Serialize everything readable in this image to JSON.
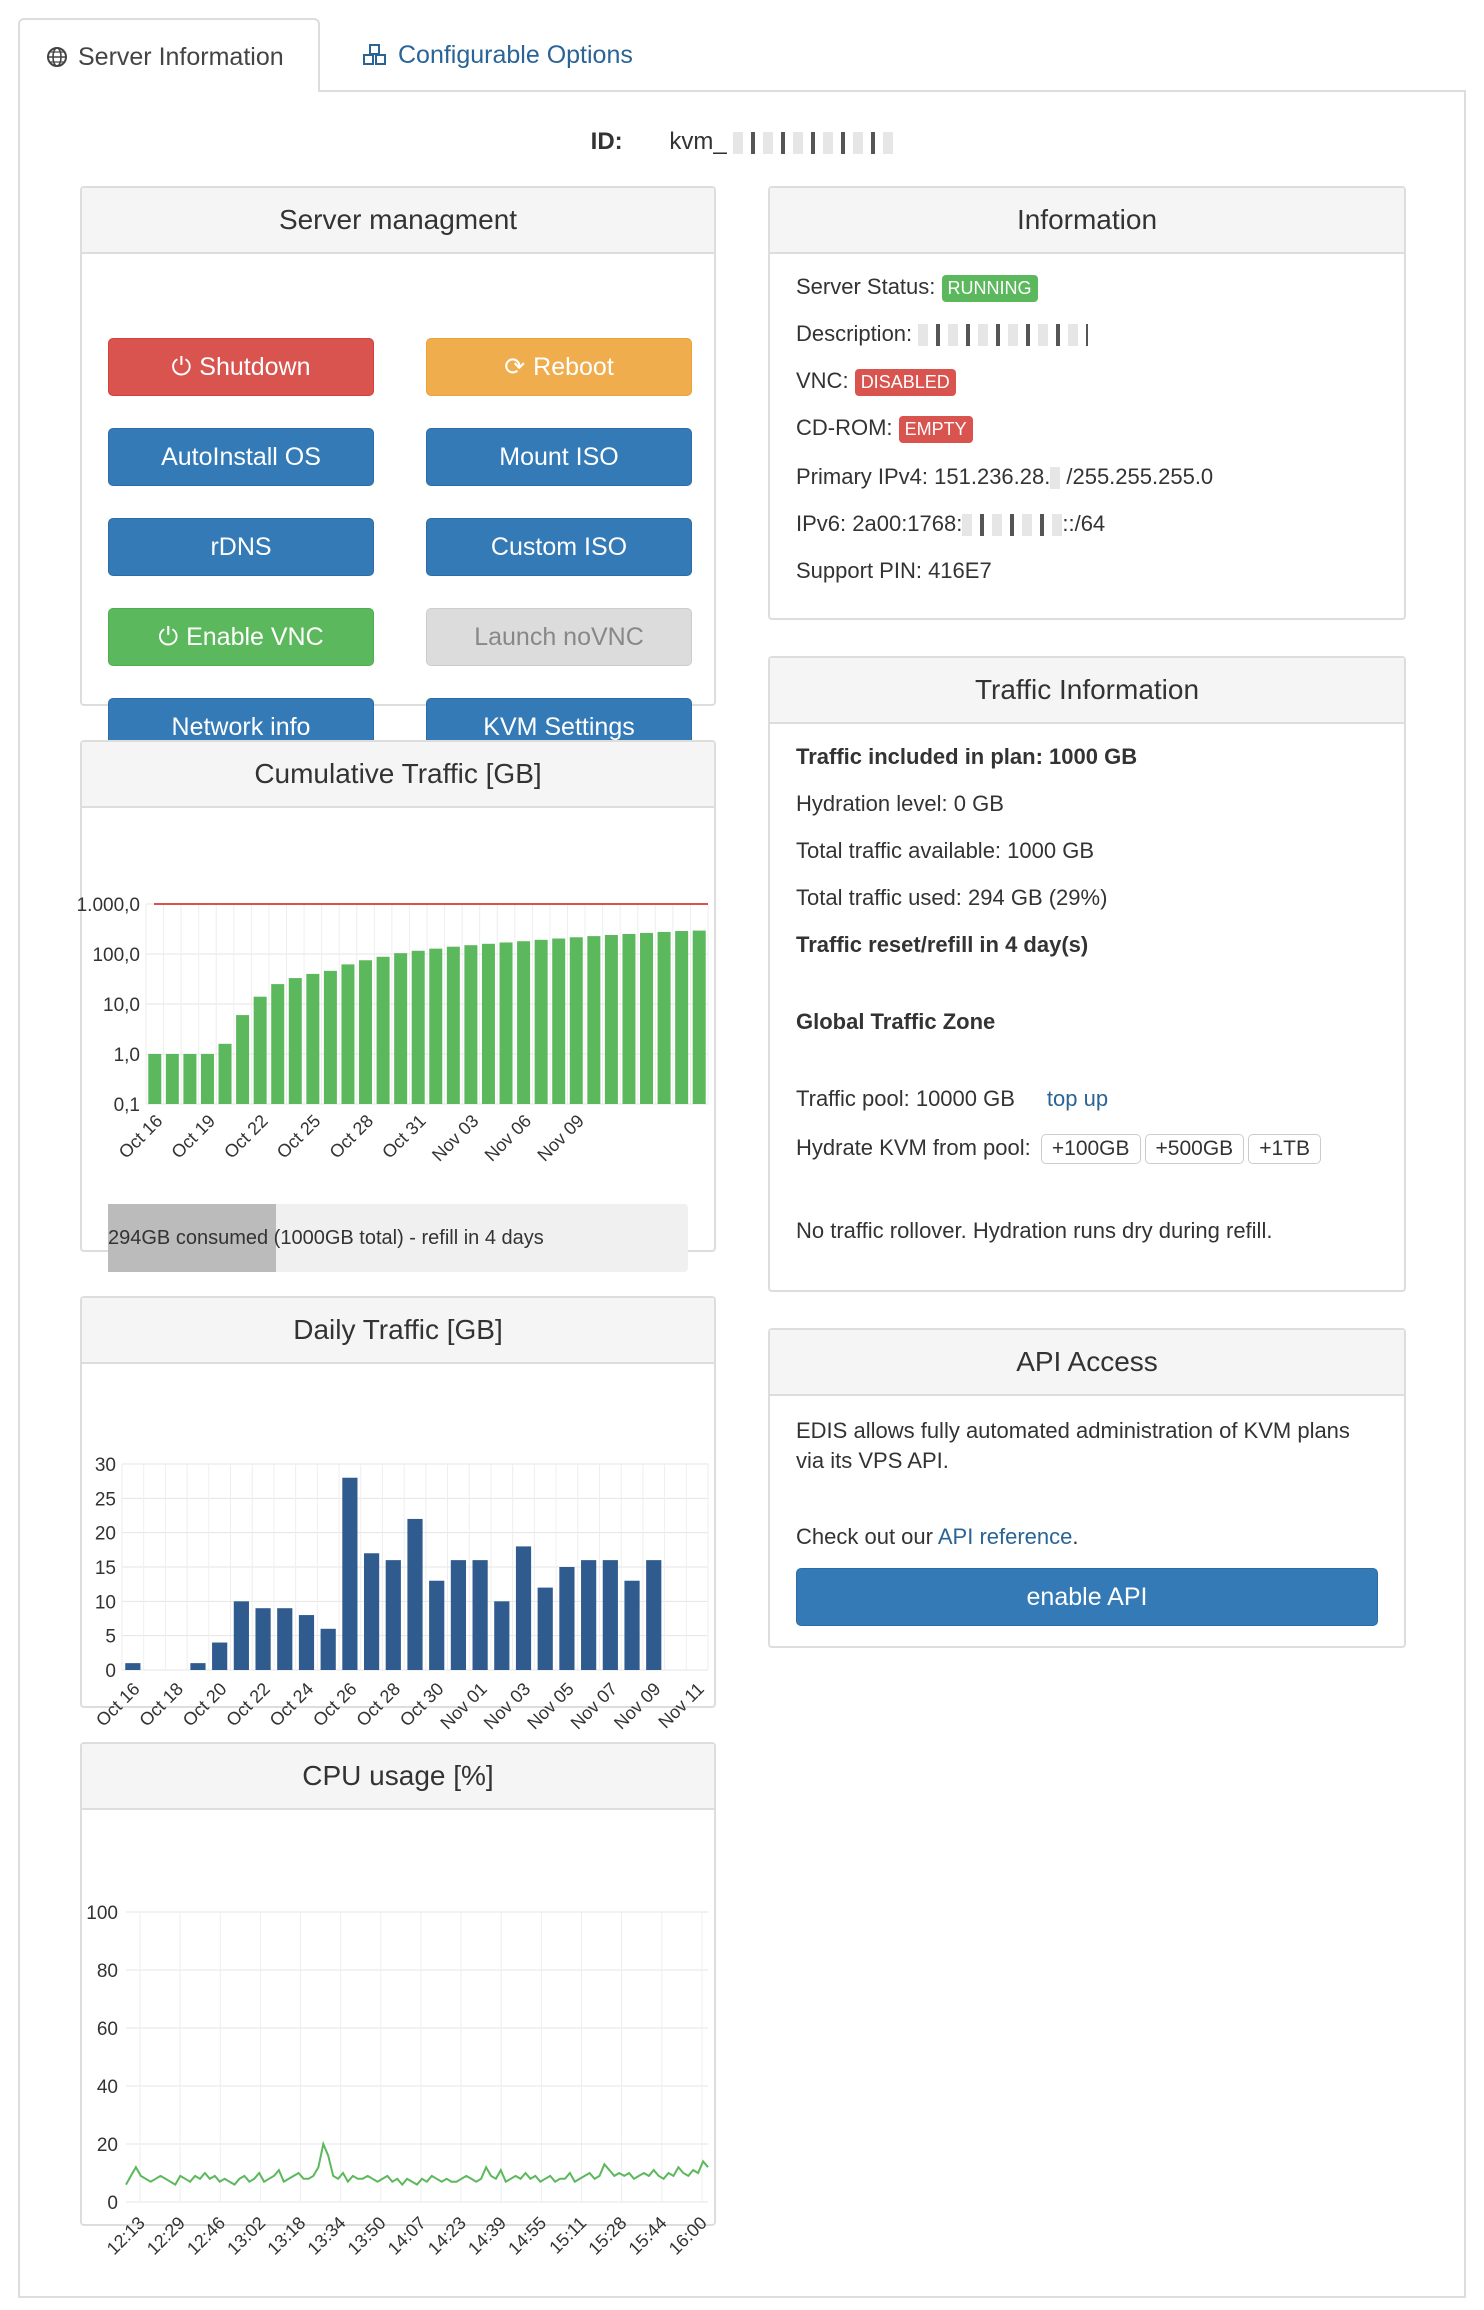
{
  "tabs": [
    {
      "label": "Server Information",
      "icon": "globe-icon",
      "active": true
    },
    {
      "label": "Configurable Options",
      "icon": "cubes-icon",
      "active": false
    }
  ],
  "server_id": {
    "label": "ID:",
    "value": "kvm_"
  },
  "management": {
    "title": "Server managment",
    "buttons": {
      "shutdown": "Shutdown",
      "reboot": "Reboot",
      "autoinstall": "AutoInstall OS",
      "mount_iso": "Mount ISO",
      "rdns": "rDNS",
      "custom_iso": "Custom ISO",
      "enable_vnc": "Enable VNC",
      "launch_novnc": "Launch noVNC",
      "network_info": "Network info",
      "kvm_settings": "KVM Settings"
    }
  },
  "information": {
    "title": "Information",
    "status_label": "Server Status:",
    "status_value": "RUNNING",
    "description_label": "Description:",
    "vnc_label": "VNC:",
    "vnc_value": "DISABLED",
    "cdrom_label": "CD-ROM:",
    "cdrom_value": "EMPTY",
    "ipv4_prefix": "Primary IPv4: 151.236.28.",
    "ipv4_suffix": "/255.255.255.0",
    "ipv6_prefix": "IPv6: 2a00:1768:",
    "ipv6_suffix": "::/64",
    "pin": "Support PIN: 416E7"
  },
  "traffic_info": {
    "title": "Traffic Information",
    "included": "Traffic included in plan: 1000 GB",
    "hydration": "Hydration level: 0 GB",
    "total_available": "Total traffic available: 1000 GB",
    "total_used": "Total traffic used: 294 GB (29%)",
    "reset": "Traffic reset/refill in 4 day(s)",
    "zone": "Global Traffic Zone",
    "pool": "Traffic pool: 10000 GB",
    "top_up": "top up",
    "hydrate_label": "Hydrate KVM from pool:",
    "hydrate_options": [
      "+100GB",
      "+500GB",
      "+1TB"
    ],
    "rollover": "No traffic rollover. Hydration runs dry during refill."
  },
  "api": {
    "title": "API Access",
    "description": "EDIS allows fully automated administration of KVM plans via its VPS API.",
    "check_prefix": "Check out our ",
    "reference_link": "API reference",
    "check_suffix": ".",
    "enable_button": "enable API"
  },
  "cumulative": {
    "title": "Cumulative Traffic [GB]",
    "consumed": "294GB consumed",
    "rest": " (1000GB total) - refill in 4 days",
    "fraction": 0.29
  },
  "daily": {
    "title": "Daily Traffic [GB]"
  },
  "cpu": {
    "title": "CPU usage [%]"
  },
  "chart_data": [
    {
      "type": "bar",
      "name": "cumulative",
      "yscale": "log",
      "ylim": [
        0.1,
        1000
      ],
      "ytick_labels": [
        "1.000,0",
        "100,0",
        "10,0",
        "1,0",
        "0,1"
      ],
      "ytick_values": [
        1000,
        100,
        10,
        1,
        0.1
      ],
      "limit_line": 1000,
      "xtick_labels": [
        "Oct 16",
        "Oct 19",
        "Oct 22",
        "Oct 25",
        "Oct 28",
        "Oct 31",
        "Nov 03",
        "Nov 06",
        "Nov 09"
      ],
      "values": [
        1,
        1,
        1,
        1,
        1.6,
        6,
        14,
        25,
        33,
        40,
        46,
        62,
        75,
        88,
        104,
        116,
        128,
        140,
        150,
        160,
        170,
        180,
        192,
        204,
        216,
        228,
        240,
        252,
        264,
        276,
        288,
        294
      ]
    },
    {
      "type": "bar",
      "name": "daily",
      "ylim": [
        0,
        30
      ],
      "ytick_values": [
        0,
        5,
        10,
        15,
        20,
        25,
        30
      ],
      "categories": [
        "Oct 16",
        "Oct 17",
        "Oct 18",
        "Oct 19",
        "Oct 20",
        "Oct 21",
        "Oct 22",
        "Oct 23",
        "Oct 24",
        "Oct 25",
        "Oct 26",
        "Oct 27",
        "Oct 28",
        "Oct 29",
        "Oct 30",
        "Oct 31",
        "Nov 01",
        "Nov 02",
        "Nov 03",
        "Nov 04",
        "Nov 05",
        "Nov 06",
        "Nov 07",
        "Nov 08",
        "Nov 09",
        "Nov 10",
        "Nov 11"
      ],
      "xtick_labels": [
        "Oct 16",
        "Oct 18",
        "Oct 20",
        "Oct 22",
        "Oct 24",
        "Oct 26",
        "Oct 28",
        "Oct 30",
        "Nov 01",
        "Nov 03",
        "Nov 05",
        "Nov 07",
        "Nov 09",
        "Nov 11"
      ],
      "values": [
        1,
        0,
        0,
        1,
        4,
        10,
        9,
        9,
        8,
        6,
        28,
        17,
        16,
        22,
        13,
        16,
        16,
        10,
        18,
        12,
        15,
        16,
        16,
        13,
        16,
        0,
        0
      ]
    },
    {
      "type": "line",
      "name": "cpu",
      "ylim": [
        0,
        100
      ],
      "ytick_values": [
        0,
        20,
        40,
        60,
        80,
        100
      ],
      "xtick_labels": [
        "12:13",
        "12:29",
        "12:46",
        "13:02",
        "13:18",
        "13:34",
        "13:50",
        "14:07",
        "14:23",
        "14:39",
        "14:55",
        "15:11",
        "15:28",
        "15:44",
        "16:00"
      ],
      "values": [
        6,
        9,
        12,
        9,
        8,
        7,
        8,
        9,
        8,
        7,
        6,
        9,
        8,
        7,
        9,
        8,
        10,
        8,
        9,
        7,
        8,
        7,
        6,
        8,
        9,
        7,
        8,
        10,
        7,
        8,
        9,
        11,
        7,
        8,
        9,
        10,
        8,
        8,
        9,
        12,
        20,
        16,
        9,
        8,
        10,
        7,
        9,
        8,
        8,
        9,
        8,
        7,
        8,
        9,
        7,
        8,
        6,
        8,
        7,
        6,
        8,
        7,
        9,
        8,
        7,
        8,
        7,
        7,
        8,
        9,
        8,
        7,
        8,
        12,
        9,
        8,
        11,
        7,
        8,
        9,
        8,
        10,
        8,
        9,
        7,
        8,
        9,
        7,
        8,
        8,
        10,
        7,
        8,
        9,
        10,
        8,
        9,
        13,
        11,
        9,
        10,
        9,
        10,
        8,
        9,
        10,
        9,
        11,
        9,
        8,
        10,
        9,
        12,
        10,
        9,
        11,
        10,
        14,
        12
      ]
    }
  ]
}
